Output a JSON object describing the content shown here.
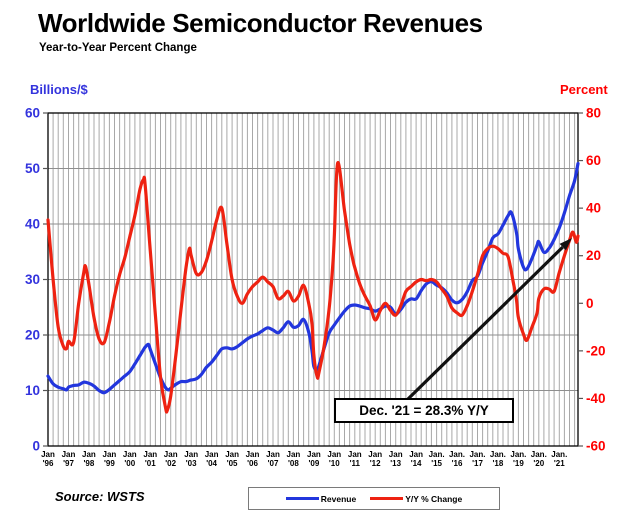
{
  "header": {
    "title": "Worldwide Semiconductor Revenues",
    "subtitle": "Year-to-Year Percent Change"
  },
  "source": {
    "label": "Source: WSTS"
  },
  "annotation": {
    "text": "Dec. '21 = 28.3% Y/Y"
  },
  "colors": {
    "revenue_line": "#2236dd",
    "yoy_line": "#ee2211",
    "left_axis_text": "#3333dd",
    "right_axis_text": "#ff0000",
    "grid_vertical": "#a8a8a8",
    "grid_horizontal": "#8e8e8e",
    "frame": "#000000",
    "arrow": "#111111"
  },
  "chart_data": {
    "type": "line",
    "title": "Worldwide Semiconductor Revenues",
    "subtitle": "Year-to-Year Percent Change",
    "x_unit": "months since Jan 1996 (monthly, Jan '96 .. Dec '21)",
    "left_axis": {
      "label": "Billions/$",
      "min": 0,
      "max": 60,
      "ticks": [
        0,
        10,
        20,
        30,
        40,
        50,
        60
      ]
    },
    "right_axis": {
      "label": "Percent",
      "min": -60,
      "max": 80,
      "ticks": [
        -60,
        -40,
        -20,
        0,
        20,
        40,
        60,
        80
      ]
    },
    "grid": {
      "vertical_every_months": 3,
      "horizontal_every": 10,
      "legend_position": "bottom-center"
    },
    "x_axis": {
      "labels": [
        {
          "m": 0,
          "l1": "Jan",
          "l2": "'96"
        },
        {
          "m": 12,
          "l1": "Jan",
          "l2": "'97"
        },
        {
          "m": 24,
          "l1": "Jan",
          "l2": "'98"
        },
        {
          "m": 36,
          "l1": "Jan",
          "l2": "'99"
        },
        {
          "m": 48,
          "l1": "Jan",
          "l2": "'00"
        },
        {
          "m": 60,
          "l1": "Jan",
          "l2": "'01"
        },
        {
          "m": 72,
          "l1": "Jan",
          "l2": "'02"
        },
        {
          "m": 84,
          "l1": "Jan",
          "l2": "'03"
        },
        {
          "m": 96,
          "l1": "Jan",
          "l2": "'04"
        },
        {
          "m": 108,
          "l1": "Jan",
          "l2": "'05"
        },
        {
          "m": 120,
          "l1": "Jan",
          "l2": "'06"
        },
        {
          "m": 132,
          "l1": "Jan",
          "l2": "'07"
        },
        {
          "m": 144,
          "l1": "Jan",
          "l2": "'08"
        },
        {
          "m": 156,
          "l1": "Jan",
          "l2": "'09"
        },
        {
          "m": 168,
          "l1": "Jan",
          "l2": "'10"
        },
        {
          "m": 180,
          "l1": "Jan",
          "l2": "'11"
        },
        {
          "m": 192,
          "l1": "Jan",
          "l2": "'12"
        },
        {
          "m": 204,
          "l1": "Jan",
          "l2": "'13"
        },
        {
          "m": 216,
          "l1": "Jan",
          "l2": "'14"
        },
        {
          "m": 228,
          "l1": "Jan.",
          "l2": "'15"
        },
        {
          "m": 240,
          "l1": "Jan.",
          "l2": "'16"
        },
        {
          "m": 252,
          "l1": "Jan.",
          "l2": "'17"
        },
        {
          "m": 264,
          "l1": "Jan.",
          "l2": "'18"
        },
        {
          "m": 276,
          "l1": "Jan.",
          "l2": "'19"
        },
        {
          "m": 288,
          "l1": "Jan.",
          "l2": "'20"
        },
        {
          "m": 300,
          "l1": "Jan.",
          "l2": "'21"
        }
      ]
    },
    "series": [
      {
        "name": "Revenue",
        "axis": "left",
        "unit": "US$ billions (3-month avg)",
        "color": "#2236dd",
        "points": [
          [
            0,
            12.6
          ],
          [
            3,
            11.2
          ],
          [
            6,
            10.6
          ],
          [
            9,
            10.3
          ],
          [
            11,
            10.1
          ],
          [
            12,
            10.6
          ],
          [
            15,
            10.9
          ],
          [
            18,
            11.0
          ],
          [
            21,
            11.5
          ],
          [
            24,
            11.3
          ],
          [
            27,
            10.8
          ],
          [
            30,
            10.0
          ],
          [
            33,
            9.6
          ],
          [
            36,
            10.2
          ],
          [
            39,
            11.0
          ],
          [
            42,
            11.8
          ],
          [
            45,
            12.6
          ],
          [
            48,
            13.4
          ],
          [
            51,
            14.8
          ],
          [
            54,
            16.3
          ],
          [
            57,
            17.8
          ],
          [
            59,
            18.3
          ],
          [
            60,
            17.4
          ],
          [
            63,
            14.8
          ],
          [
            66,
            12.3
          ],
          [
            69,
            10.5
          ],
          [
            71,
            10.1
          ],
          [
            72,
            10.4
          ],
          [
            75,
            11.1
          ],
          [
            78,
            11.6
          ],
          [
            81,
            11.6
          ],
          [
            83,
            11.8
          ],
          [
            84,
            11.9
          ],
          [
            87,
            12.1
          ],
          [
            90,
            12.9
          ],
          [
            93,
            14.2
          ],
          [
            96,
            15.1
          ],
          [
            99,
            16.3
          ],
          [
            102,
            17.5
          ],
          [
            105,
            17.7
          ],
          [
            108,
            17.5
          ],
          [
            111,
            17.9
          ],
          [
            114,
            18.6
          ],
          [
            117,
            19.3
          ],
          [
            120,
            19.8
          ],
          [
            123,
            20.2
          ],
          [
            126,
            20.8
          ],
          [
            129,
            21.3
          ],
          [
            132,
            20.9
          ],
          [
            135,
            20.4
          ],
          [
            138,
            21.3
          ],
          [
            141,
            22.4
          ],
          [
            144,
            21.4
          ],
          [
            147,
            21.7
          ],
          [
            150,
            22.8
          ],
          [
            153,
            20.5
          ],
          [
            155,
            17.0
          ],
          [
            156,
            14.3
          ],
          [
            158,
            13.8
          ],
          [
            159,
            14.5
          ],
          [
            162,
            17.6
          ],
          [
            165,
            20.4
          ],
          [
            168,
            21.8
          ],
          [
            171,
            23.1
          ],
          [
            174,
            24.3
          ],
          [
            177,
            25.2
          ],
          [
            180,
            25.4
          ],
          [
            183,
            25.2
          ],
          [
            186,
            24.9
          ],
          [
            189,
            24.7
          ],
          [
            192,
            24.3
          ],
          [
            195,
            24.7
          ],
          [
            198,
            25.2
          ],
          [
            201,
            25.0
          ],
          [
            204,
            23.8
          ],
          [
            207,
            24.6
          ],
          [
            210,
            25.9
          ],
          [
            213,
            26.5
          ],
          [
            216,
            26.5
          ],
          [
            219,
            28.0
          ],
          [
            222,
            29.2
          ],
          [
            225,
            29.6
          ],
          [
            228,
            29.0
          ],
          [
            231,
            28.5
          ],
          [
            234,
            27.6
          ],
          [
            237,
            26.3
          ],
          [
            240,
            25.8
          ],
          [
            243,
            26.4
          ],
          [
            246,
            27.8
          ],
          [
            249,
            29.8
          ],
          [
            252,
            30.6
          ],
          [
            255,
            33.0
          ],
          [
            258,
            35.1
          ],
          [
            261,
            37.5
          ],
          [
            264,
            38.2
          ],
          [
            267,
            39.8
          ],
          [
            270,
            41.5
          ],
          [
            272,
            42.0
          ],
          [
            275,
            38.3
          ],
          [
            276,
            35.5
          ],
          [
            279,
            32.2
          ],
          [
            281,
            31.9
          ],
          [
            284,
            33.8
          ],
          [
            287,
            36.2
          ],
          [
            288,
            36.8
          ],
          [
            291,
            34.9
          ],
          [
            294,
            35.6
          ],
          [
            297,
            37.2
          ],
          [
            300,
            39.3
          ],
          [
            303,
            42.0
          ],
          [
            306,
            45.1
          ],
          [
            309,
            47.8
          ],
          [
            311,
            50.9
          ]
        ]
      },
      {
        "name": "Y/Y % Change",
        "axis": "right",
        "unit": "percent",
        "color": "#ee2211",
        "points": [
          [
            0,
            35
          ],
          [
            3,
            10
          ],
          [
            6,
            -10
          ],
          [
            9,
            -18
          ],
          [
            11,
            -19
          ],
          [
            12,
            -16
          ],
          [
            15,
            -16.5
          ],
          [
            18,
            0
          ],
          [
            21,
            13
          ],
          [
            22,
            15.5
          ],
          [
            24,
            8
          ],
          [
            27,
            -6
          ],
          [
            30,
            -15
          ],
          [
            33,
            -16.5
          ],
          [
            36,
            -8
          ],
          [
            39,
            3
          ],
          [
            42,
            12
          ],
          [
            45,
            19
          ],
          [
            48,
            28
          ],
          [
            51,
            37
          ],
          [
            54,
            48
          ],
          [
            56,
            52
          ],
          [
            57,
            50
          ],
          [
            60,
            22
          ],
          [
            63,
            -5
          ],
          [
            66,
            -31
          ],
          [
            69,
            -44
          ],
          [
            70,
            -45
          ],
          [
            72,
            -39
          ],
          [
            75,
            -22
          ],
          [
            78,
            -3
          ],
          [
            81,
            15
          ],
          [
            83,
            23
          ],
          [
            84,
            20
          ],
          [
            87,
            12.5
          ],
          [
            90,
            13
          ],
          [
            93,
            18
          ],
          [
            96,
            26
          ],
          [
            99,
            35
          ],
          [
            102,
            40
          ],
          [
            105,
            25
          ],
          [
            108,
            10
          ],
          [
            111,
            3
          ],
          [
            114,
            0
          ],
          [
            117,
            4
          ],
          [
            120,
            7
          ],
          [
            123,
            9
          ],
          [
            126,
            11
          ],
          [
            129,
            9
          ],
          [
            132,
            7
          ],
          [
            135,
            2
          ],
          [
            138,
            3
          ],
          [
            141,
            5
          ],
          [
            144,
            1
          ],
          [
            147,
            3
          ],
          [
            150,
            7.5
          ],
          [
            153,
            0
          ],
          [
            155,
            -9
          ],
          [
            156,
            -22
          ],
          [
            158,
            -31
          ],
          [
            159,
            -29
          ],
          [
            162,
            -18
          ],
          [
            165,
            -2
          ],
          [
            167,
            15
          ],
          [
            168,
            28
          ],
          [
            170,
            59
          ],
          [
            174,
            39
          ],
          [
            177,
            25
          ],
          [
            179,
            18
          ],
          [
            180,
            15
          ],
          [
            183,
            8
          ],
          [
            186,
            3
          ],
          [
            189,
            -1
          ],
          [
            192,
            -7
          ],
          [
            195,
            -3
          ],
          [
            198,
            0
          ],
          [
            201,
            -3
          ],
          [
            204,
            -5
          ],
          [
            207,
            -1
          ],
          [
            210,
            5
          ],
          [
            213,
            7
          ],
          [
            216,
            9
          ],
          [
            219,
            10
          ],
          [
            222,
            9.5
          ],
          [
            225,
            10
          ],
          [
            228,
            9
          ],
          [
            231,
            6
          ],
          [
            234,
            3
          ],
          [
            237,
            -2
          ],
          [
            240,
            -4
          ],
          [
            243,
            -5
          ],
          [
            246,
            -1
          ],
          [
            249,
            5
          ],
          [
            252,
            12
          ],
          [
            255,
            20
          ],
          [
            258,
            23
          ],
          [
            261,
            24
          ],
          [
            264,
            23
          ],
          [
            267,
            21
          ],
          [
            270,
            19.5
          ],
          [
            273,
            9
          ],
          [
            275,
            1
          ],
          [
            276,
            -6
          ],
          [
            279,
            -13
          ],
          [
            281,
            -15.5
          ],
          [
            284,
            -10
          ],
          [
            287,
            -4
          ],
          [
            288,
            2
          ],
          [
            291,
            6
          ],
          [
            294,
            6
          ],
          [
            297,
            5
          ],
          [
            300,
            13
          ],
          [
            303,
            20
          ],
          [
            306,
            26.5
          ],
          [
            308,
            29.9
          ],
          [
            310,
            25.7
          ],
          [
            311,
            28.3
          ]
        ]
      }
    ],
    "annotation": {
      "text": "Dec. '21 = 28.3% Y/Y",
      "points_at": {
        "month": 311,
        "percent": 28.3
      }
    }
  }
}
